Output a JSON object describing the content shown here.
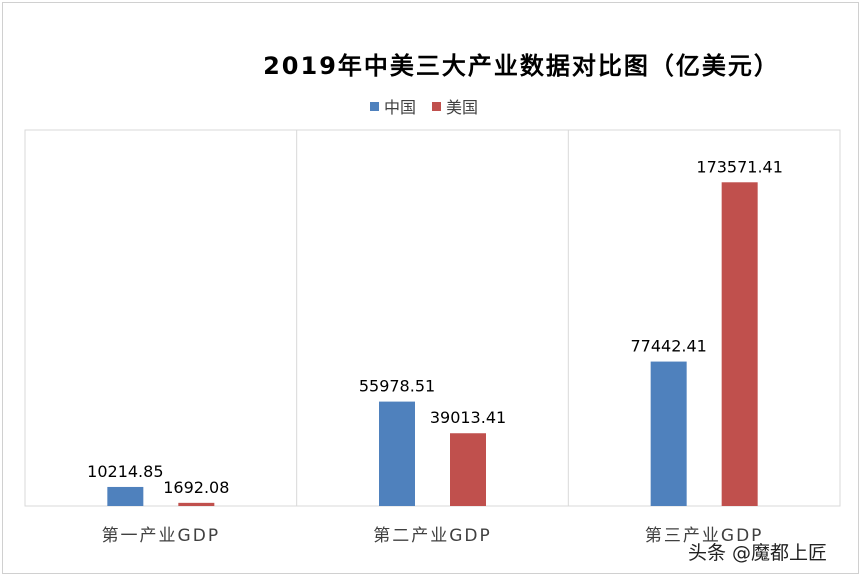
{
  "chart_data": {
    "type": "bar",
    "title": "2019年中美三大产业数据对比图（亿美元）",
    "categories": [
      "第一产业GDP",
      "第二产业GDP",
      "第三产业GDP"
    ],
    "series": [
      {
        "name": "中国",
        "color": "#4f81bd",
        "values": [
          10214.85,
          55978.51,
          77442.41
        ],
        "labels": [
          "10214.85",
          "55978.51",
          "77442.41"
        ]
      },
      {
        "name": "美国",
        "color": "#c0504d",
        "values": [
          1692.08,
          39013.41,
          173571.41
        ],
        "labels": [
          "1692.08",
          "39013.41",
          "173571.41"
        ]
      }
    ],
    "ylim": [
      0,
      200000
    ],
    "legend": "top",
    "grid": false
  },
  "watermark": "头条 @魔都上匠"
}
